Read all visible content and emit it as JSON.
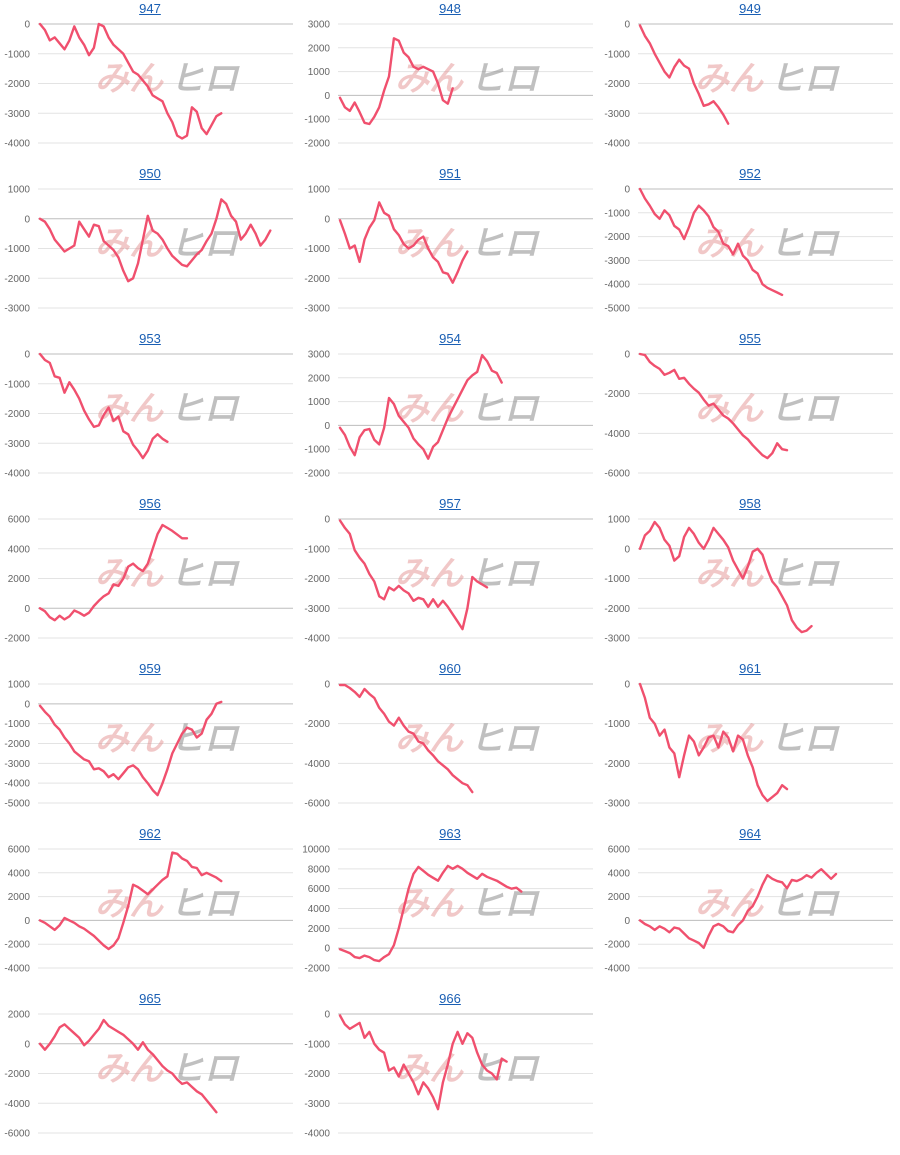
{
  "watermark": {
    "text_a": "みん",
    "text_b": "ヒロ"
  },
  "colors": {
    "line": "#f0506e",
    "title": "#1a5fb4"
  },
  "chart_data": [
    {
      "type": "line",
      "title": "947",
      "yticks": [
        0,
        -1000,
        -2000,
        -3000,
        -4000
      ],
      "ylim": [
        -4000,
        0
      ],
      "values": [
        0,
        -200,
        -550,
        -450,
        -650,
        -850,
        -550,
        -80,
        -450,
        -700,
        -1050,
        -800,
        0,
        -80,
        -450,
        -700,
        -850,
        -1000,
        -1300,
        -1600,
        -1700,
        -1900,
        -2100,
        -2400,
        -2500,
        -2600,
        -3000,
        -3300,
        -3750,
        -3850,
        -3750,
        -2800,
        -2950,
        -3500,
        -3700,
        -3400,
        -3100,
        -3000
      ]
    },
    {
      "type": "line",
      "title": "948",
      "yticks": [
        3000,
        2000,
        1000,
        0,
        -1000,
        -2000
      ],
      "ylim": [
        -2000,
        3000
      ],
      "values": [
        -100,
        -500,
        -650,
        -300,
        -700,
        -1150,
        -1200,
        -900,
        -500,
        200,
        800,
        2400,
        2300,
        1800,
        1600,
        1200,
        1100,
        1200,
        1100,
        1000,
        500,
        -200,
        -350,
        300
      ]
    },
    {
      "type": "line",
      "title": "949",
      "yticks": [
        0,
        -1000,
        -2000,
        -3000,
        -4000
      ],
      "ylim": [
        -4000,
        0
      ],
      "values": [
        -50,
        -400,
        -650,
        -1000,
        -1300,
        -1600,
        -1800,
        -1450,
        -1200,
        -1400,
        -1500,
        -2000,
        -2350,
        -2750,
        -2700,
        -2600,
        -2800,
        -3050,
        -3350
      ]
    },
    {
      "type": "line",
      "title": "950",
      "yticks": [
        1000,
        0,
        -1000,
        -2000,
        -3000
      ],
      "ylim": [
        -3000,
        1000
      ],
      "values": [
        0,
        -100,
        -350,
        -700,
        -900,
        -1100,
        -1000,
        -900,
        -100,
        -350,
        -600,
        -200,
        -250,
        -750,
        -900,
        -1050,
        -1300,
        -1750,
        -2100,
        -2000,
        -1500,
        -700,
        100,
        -400,
        -500,
        -700,
        -1000,
        -1250,
        -1400,
        -1550,
        -1600,
        -1400,
        -1200,
        -1050,
        -750,
        -500,
        0,
        650,
        500,
        100,
        -100,
        -700,
        -500,
        -200,
        -500,
        -900,
        -700,
        -400
      ]
    },
    {
      "type": "line",
      "title": "951",
      "yticks": [
        1000,
        0,
        -1000,
        -2000,
        -3000
      ],
      "ylim": [
        -3000,
        1000
      ],
      "values": [
        -50,
        -500,
        -1000,
        -900,
        -1450,
        -700,
        -300,
        -50,
        550,
        200,
        100,
        -350,
        -550,
        -850,
        -1000,
        -900,
        -700,
        -600,
        -1000,
        -1300,
        -1450,
        -1800,
        -1850,
        -2150,
        -1800,
        -1400,
        -1100
      ]
    },
    {
      "type": "line",
      "title": "952",
      "yticks": [
        0,
        -1000,
        -2000,
        -3000,
        -4000,
        -5000
      ],
      "ylim": [
        -5000,
        0
      ],
      "values": [
        0,
        -400,
        -700,
        -1050,
        -1250,
        -900,
        -1100,
        -1550,
        -1700,
        -2100,
        -1600,
        -1000,
        -700,
        -900,
        -1150,
        -1600,
        -1800,
        -2300,
        -2400,
        -2750,
        -2300,
        -2800,
        -3000,
        -3400,
        -3550,
        -4000,
        -4150,
        -4250,
        -4350,
        -4450
      ]
    },
    {
      "type": "line",
      "title": "953",
      "yticks": [
        0,
        -1000,
        -2000,
        -3000,
        -4000
      ],
      "ylim": [
        -4000,
        0
      ],
      "values": [
        0,
        -200,
        -300,
        -750,
        -800,
        -1300,
        -950,
        -1200,
        -1500,
        -1900,
        -2200,
        -2450,
        -2400,
        -2050,
        -1800,
        -2250,
        -2100,
        -2600,
        -2700,
        -3050,
        -3250,
        -3500,
        -3250,
        -2850,
        -2700,
        -2850,
        -2950
      ]
    },
    {
      "type": "line",
      "title": "954",
      "yticks": [
        3000,
        2000,
        1000,
        0,
        -1000,
        -2000
      ],
      "ylim": [
        -2000,
        3000
      ],
      "values": [
        -100,
        -400,
        -900,
        -1250,
        -500,
        -200,
        -150,
        -600,
        -800,
        -100,
        1150,
        900,
        400,
        150,
        -100,
        -550,
        -800,
        -1000,
        -1400,
        -900,
        -700,
        -200,
        300,
        700,
        1100,
        1500,
        1900,
        2100,
        2250,
        2950,
        2700,
        2300,
        2200,
        1800
      ]
    },
    {
      "type": "line",
      "title": "955",
      "yticks": [
        0,
        -2000,
        -4000,
        -6000
      ],
      "ylim": [
        -6000,
        0
      ],
      "values": [
        0,
        -50,
        -400,
        -600,
        -750,
        -1050,
        -950,
        -800,
        -1250,
        -1200,
        -1500,
        -1750,
        -1950,
        -2300,
        -2600,
        -2500,
        -2800,
        -3100,
        -3250,
        -3500,
        -3800,
        -4100,
        -4300,
        -4600,
        -4850,
        -5100,
        -5250,
        -5000,
        -4500,
        -4800,
        -4850
      ]
    },
    {
      "type": "line",
      "title": "956",
      "yticks": [
        6000,
        4000,
        2000,
        0,
        -2000
      ],
      "ylim": [
        -2000,
        6000
      ],
      "values": [
        0,
        -200,
        -600,
        -800,
        -500,
        -750,
        -550,
        -150,
        -300,
        -500,
        -300,
        150,
        500,
        800,
        1000,
        1600,
        1500,
        2000,
        2800,
        3000,
        2700,
        2500,
        3000,
        4000,
        5000,
        5600,
        5400,
        5200,
        4950,
        4700,
        4700
      ]
    },
    {
      "type": "line",
      "title": "957",
      "yticks": [
        0,
        -1000,
        -2000,
        -3000,
        -4000
      ],
      "ylim": [
        -4000,
        0
      ],
      "values": [
        -50,
        -300,
        -500,
        -1050,
        -1300,
        -1500,
        -1850,
        -2100,
        -2600,
        -2700,
        -2300,
        -2400,
        -2250,
        -2400,
        -2500,
        -2750,
        -2650,
        -2700,
        -2950,
        -2700,
        -2950,
        -2750,
        -2950,
        -3200,
        -3450,
        -3700,
        -3000,
        -1950,
        -2100,
        -2200,
        -2300
      ]
    },
    {
      "type": "line",
      "title": "958",
      "yticks": [
        1000,
        0,
        -1000,
        -2000,
        -3000
      ],
      "ylim": [
        -3000,
        1000
      ],
      "values": [
        0,
        450,
        600,
        900,
        700,
        300,
        100,
        -400,
        -250,
        400,
        700,
        500,
        200,
        0,
        300,
        700,
        500,
        300,
        50,
        -400,
        -700,
        -1000,
        -600,
        -100,
        0,
        -200,
        -700,
        -1100,
        -1300,
        -1600,
        -1900,
        -2400,
        -2650,
        -2800,
        -2750,
        -2600
      ]
    },
    {
      "type": "line",
      "title": "959",
      "yticks": [
        1000,
        0,
        -1000,
        -2000,
        -3000,
        -4000,
        -5000
      ],
      "ylim": [
        -5000,
        1000
      ],
      "values": [
        -100,
        -400,
        -650,
        -1050,
        -1300,
        -1700,
        -2000,
        -2400,
        -2600,
        -2800,
        -2900,
        -3300,
        -3250,
        -3400,
        -3700,
        -3550,
        -3800,
        -3500,
        -3200,
        -3100,
        -3300,
        -3700,
        -4000,
        -4350,
        -4600,
        -4000,
        -3300,
        -2500,
        -2000,
        -1500,
        -1200,
        -1300,
        -1700,
        -1500,
        -800,
        -500,
        0,
        100
      ]
    },
    {
      "type": "line",
      "title": "960",
      "yticks": [
        0,
        -2000,
        -4000,
        -6000
      ],
      "ylim": [
        -6000,
        0
      ],
      "values": [
        -50,
        -50,
        -200,
        -400,
        -650,
        -250,
        -500,
        -700,
        -1200,
        -1500,
        -1900,
        -2100,
        -1700,
        -2100,
        -2400,
        -2500,
        -2900,
        -3000,
        -3350,
        -3600,
        -3900,
        -4100,
        -4300,
        -4600,
        -4800,
        -5000,
        -5100,
        -5450
      ]
    },
    {
      "type": "line",
      "title": "961",
      "yticks": [
        0,
        -1000,
        -2000,
        -3000
      ],
      "ylim": [
        -3000,
        0
      ],
      "values": [
        0,
        -350,
        -850,
        -1000,
        -1300,
        -1150,
        -1600,
        -1750,
        -2350,
        -1800,
        -1300,
        -1450,
        -1800,
        -1600,
        -1350,
        -1300,
        -1600,
        -1200,
        -1350,
        -1700,
        -1300,
        -1400,
        -1800,
        -2100,
        -2550,
        -2800,
        -2950,
        -2850,
        -2750,
        -2550,
        -2650
      ]
    },
    {
      "type": "line",
      "title": "962",
      "yticks": [
        6000,
        4000,
        2000,
        0,
        -2000,
        -4000
      ],
      "ylim": [
        -4000,
        6000
      ],
      "values": [
        0,
        -200,
        -500,
        -800,
        -400,
        200,
        0,
        -200,
        -500,
        -700,
        -1000,
        -1300,
        -1700,
        -2100,
        -2400,
        -2100,
        -1500,
        -200,
        1200,
        3000,
        2800,
        2500,
        2200,
        2600,
        3000,
        3400,
        3700,
        5700,
        5600,
        5200,
        5000,
        4500,
        4400,
        3800,
        4000,
        3800,
        3600,
        3300
      ]
    },
    {
      "type": "line",
      "title": "963",
      "yticks": [
        10000,
        8000,
        6000,
        4000,
        2000,
        0,
        -2000
      ],
      "ylim": [
        -2000,
        10000
      ],
      "values": [
        -100,
        -300,
        -500,
        -900,
        -1000,
        -750,
        -900,
        -1200,
        -1300,
        -900,
        -600,
        300,
        2000,
        4000,
        6000,
        7500,
        8200,
        7800,
        7400,
        7100,
        6800,
        7600,
        8300,
        8000,
        8300,
        8000,
        7600,
        7300,
        7000,
        7500,
        7200,
        7000,
        6800,
        6500,
        6200,
        6000,
        6100,
        5700
      ]
    },
    {
      "type": "line",
      "title": "964",
      "yticks": [
        6000,
        4000,
        2000,
        0,
        -2000,
        -4000
      ],
      "ylim": [
        -4000,
        6000
      ],
      "values": [
        0,
        -300,
        -500,
        -800,
        -500,
        -700,
        -1000,
        -600,
        -700,
        -1100,
        -1500,
        -1700,
        -1900,
        -2300,
        -1300,
        -500,
        -300,
        -500,
        -900,
        -1000,
        -400,
        0,
        800,
        1200,
        2000,
        3000,
        3800,
        3500,
        3300,
        3200,
        2700,
        3400,
        3300,
        3500,
        3800,
        3600,
        4000,
        4300,
        3900,
        3500,
        3900
      ]
    },
    {
      "type": "line",
      "title": "965",
      "yticks": [
        2000,
        0,
        -2000,
        -4000,
        -6000
      ],
      "ylim": [
        -6000,
        2000
      ],
      "values": [
        0,
        -400,
        0,
        500,
        1100,
        1300,
        1000,
        700,
        400,
        -100,
        200,
        600,
        1000,
        1600,
        1200,
        1000,
        800,
        600,
        300,
        0,
        -400,
        100,
        -400,
        -700,
        -1100,
        -1500,
        -1800,
        -2000,
        -2400,
        -2700,
        -2600,
        -2900,
        -3200,
        -3400,
        -3800,
        -4200,
        -4600
      ]
    },
    {
      "type": "line",
      "title": "966",
      "yticks": [
        0,
        -1000,
        -2000,
        -3000,
        -4000
      ],
      "ylim": [
        -4000,
        0
      ],
      "values": [
        -50,
        -350,
        -500,
        -400,
        -300,
        -800,
        -600,
        -1000,
        -1200,
        -1300,
        -1900,
        -1800,
        -2100,
        -1700,
        -2000,
        -2300,
        -2700,
        -2300,
        -2500,
        -2800,
        -3200,
        -2300,
        -1700,
        -1000,
        -600,
        -1000,
        -650,
        -800,
        -1300,
        -1700,
        -1900,
        -2000,
        -2200,
        -1500,
        -1600
      ]
    }
  ]
}
